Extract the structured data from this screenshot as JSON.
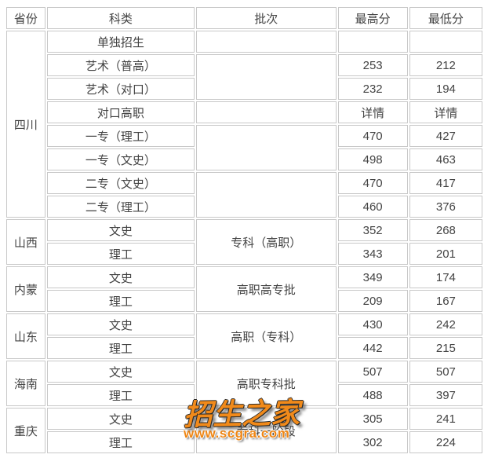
{
  "colors": {
    "table_border": "#c8c8c8",
    "table_text": "#434343",
    "watermark_orange": "#f18a1a",
    "background": "#ffffff"
  },
  "table": {
    "headers": [
      "省份",
      "科类",
      "批次",
      "最高分",
      "最低分"
    ],
    "sections": [
      {
        "province": "四川",
        "rows": [
          {
            "category": "单独招生",
            "batch": "",
            "max": "",
            "min": ""
          },
          {
            "category": "艺术（普高）",
            "batch": "",
            "max": "253",
            "min": "212"
          },
          {
            "category": "艺术（对口）",
            "max": "232",
            "min": "194"
          },
          {
            "category": "对口高职",
            "batch": "",
            "max": "详情",
            "min": "详情"
          },
          {
            "category": "一专（理工）",
            "batch": "",
            "max": "470",
            "min": "427"
          },
          {
            "category": "一专（文史）",
            "max": "498",
            "min": "463"
          },
          {
            "category": "二专（文史）",
            "batch": "",
            "max": "470",
            "min": "417"
          },
          {
            "category": "二专（理工）",
            "max": "460",
            "min": "376"
          }
        ]
      },
      {
        "province": "山西",
        "batch": "专科（高职）",
        "rows": [
          {
            "category": "文史",
            "max": "352",
            "min": "268"
          },
          {
            "category": "理工",
            "max": "343",
            "min": "201"
          }
        ]
      },
      {
        "province": "内蒙",
        "batch": "高职高专批",
        "rows": [
          {
            "category": "文史",
            "max": "349",
            "min": "174"
          },
          {
            "category": "理工",
            "max": "209",
            "min": "167"
          }
        ]
      },
      {
        "province": "山东",
        "batch": "高职（专科）",
        "rows": [
          {
            "category": "文史",
            "max": "430",
            "min": "242"
          },
          {
            "category": "理工",
            "max": "442",
            "min": "215"
          }
        ]
      },
      {
        "province": "海南",
        "batch": "高职专科批",
        "rows": [
          {
            "category": "文史",
            "max": "507",
            "min": "507"
          },
          {
            "category": "理工",
            "max": "488",
            "min": "397"
          }
        ]
      },
      {
        "province": "重庆",
        "batch": "专科一阶段",
        "rows": [
          {
            "category": "文史",
            "max": "305",
            "min": "241"
          },
          {
            "category": "理工",
            "max": "302",
            "min": "224"
          }
        ]
      }
    ]
  },
  "watermark": {
    "title": "招生之家",
    "url": "www.scgra.com"
  }
}
